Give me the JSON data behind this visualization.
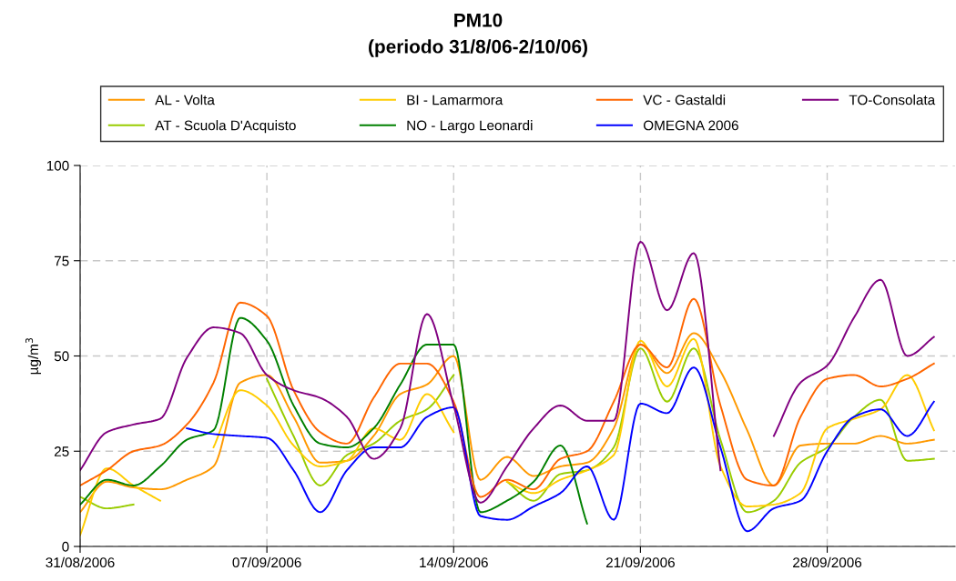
{
  "chart_data": {
    "type": "line",
    "title": "PM10",
    "subtitle": "(periodo 31/8/06-2/10/06)",
    "ylabel": "µg/m$^{3}$",
    "x": [
      "2006-08-31",
      "2006-09-01",
      "2006-09-02",
      "2006-09-03",
      "2006-09-04",
      "2006-09-05",
      "2006-09-06",
      "2006-09-07",
      "2006-09-08",
      "2006-09-09",
      "2006-09-10",
      "2006-09-11",
      "2006-09-12",
      "2006-09-13",
      "2006-09-14",
      "2006-09-15",
      "2006-09-16",
      "2006-09-17",
      "2006-09-18",
      "2006-09-19",
      "2006-09-20",
      "2006-09-21",
      "2006-09-22",
      "2006-09-23",
      "2006-09-24",
      "2006-09-25",
      "2006-09-26",
      "2006-09-27",
      "2006-09-28",
      "2006-09-29",
      "2006-09-30",
      "2006-10-01",
      "2006-10-02"
    ],
    "xlim": [
      "2006-08-31",
      "2006-10-02T19:00"
    ],
    "xticks": [
      {
        "value": "2006-08-31",
        "label": "31/08/2006"
      },
      {
        "value": "2006-09-07",
        "label": "07/09/2006"
      },
      {
        "value": "2006-09-14",
        "label": "14/09/2006"
      },
      {
        "value": "2006-09-21",
        "label": "21/09/2006"
      },
      {
        "value": "2006-09-28",
        "label": "28/09/2006"
      }
    ],
    "ylim": [
      0,
      100
    ],
    "yticks": [
      0,
      25,
      50,
      75,
      100
    ],
    "grid": true,
    "legend": "top",
    "line_style": "solid",
    "marker": "none",
    "series": [
      {
        "name": "AL - Volta",
        "color": "#ff9900",
        "values": [
          9,
          17,
          15.5,
          15,
          17.5,
          21,
          43,
          45,
          34,
          22,
          22.5,
          29,
          40,
          42.5,
          50,
          17.5,
          23.5,
          18.5,
          21,
          22,
          31,
          53,
          45.5,
          56,
          46,
          30.5,
          16,
          26.5,
          27,
          27,
          29,
          27,
          28
        ]
      },
      {
        "name": "AT - Scuola D'Acquisto",
        "color": "#99cc00",
        "values": [
          13,
          10,
          11,
          null,
          null,
          null,
          null,
          44,
          29,
          16,
          24,
          27,
          33,
          36,
          45,
          null,
          17,
          12,
          19,
          20,
          26,
          52,
          38,
          52,
          28,
          9,
          12,
          22,
          26,
          34,
          38.5,
          22.5,
          23
        ]
      },
      {
        "name": "BI - Lamarmora",
        "color": "#ffcc00",
        "values": [
          3,
          20.5,
          16,
          12,
          null,
          26,
          41,
          37,
          26.5,
          21,
          22.5,
          31,
          28,
          40,
          30,
          null,
          17,
          14,
          17.5,
          20,
          24,
          54,
          42,
          54.5,
          21,
          10.5,
          11,
          14,
          31,
          33.5,
          36,
          45,
          30.5
        ]
      },
      {
        "name": "NO - Largo Leonardi",
        "color": "#008000",
        "values": [
          11,
          17.5,
          16,
          21,
          28,
          30.5,
          60,
          54,
          37,
          27,
          26,
          31,
          42.5,
          53,
          53,
          9,
          12,
          17,
          26.5,
          6,
          null,
          null,
          null,
          null,
          null,
          null,
          null,
          null,
          null,
          null,
          null,
          null,
          null
        ]
      },
      {
        "name": "VC - Gastaldi",
        "color": "#ff6600",
        "values": [
          16,
          20,
          25,
          26.5,
          32,
          43,
          64,
          60.5,
          41,
          30,
          27,
          39,
          48,
          48,
          38,
          13,
          17.5,
          15,
          23,
          25,
          38,
          53,
          47,
          65,
          37,
          17.5,
          16,
          34,
          44,
          45,
          42,
          44,
          48
        ]
      },
      {
        "name": "OMEGNA 2006",
        "color": "#0000ff",
        "values": [
          null,
          null,
          null,
          null,
          31,
          29.5,
          29,
          28.5,
          20,
          9,
          20,
          26,
          26,
          34,
          36.5,
          8,
          7,
          10.5,
          14,
          21,
          7,
          37.5,
          35,
          47,
          26,
          4,
          10,
          12,
          25,
          34,
          36,
          29,
          38
        ]
      },
      {
        "name": "TO-Consolata",
        "color": "#800080",
        "values": [
          20,
          30,
          32,
          33.5,
          49.5,
          57.5,
          56,
          45,
          41,
          39,
          34,
          23,
          31,
          61,
          37,
          11.5,
          21,
          31,
          37,
          33,
          33,
          80,
          62,
          77,
          20,
          null,
          29,
          43,
          47.5,
          60,
          70,
          50,
          55
        ]
      }
    ]
  }
}
